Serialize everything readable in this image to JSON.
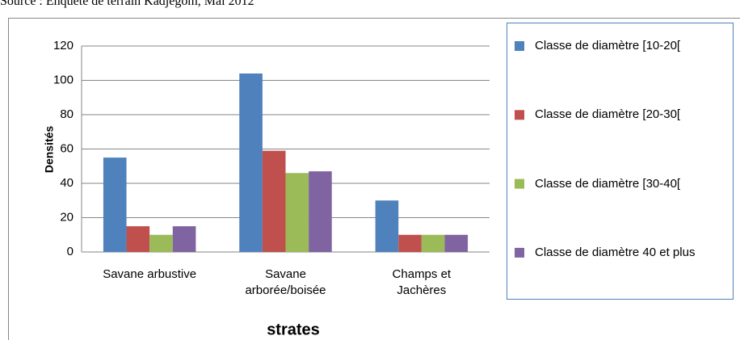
{
  "chart_data": {
    "type": "bar",
    "source": "Source : Enquête de terrain  Kadjegom, Mai 2012",
    "categories": [
      "Savane arbustive",
      "Savane arborée/boisée",
      "Champs et Jachères"
    ],
    "series": [
      {
        "name": "Classe de diamètre [10-20[",
        "color": "#4f81bd",
        "values": [
          55,
          104,
          30
        ]
      },
      {
        "name": "Classe de diamètre [20-30[",
        "color": "#c0504d",
        "values": [
          15,
          59,
          10
        ]
      },
      {
        "name": "Classe de diamètre [30-40[",
        "color": "#9bbb59",
        "values": [
          10,
          46,
          10
        ]
      },
      {
        "name": "Classe de diamètre 40 et plus",
        "color": "#8064a2",
        "values": [
          15,
          47,
          10
        ]
      }
    ],
    "ylabel": "Densités",
    "xlabel": "strates",
    "ylim": [
      0,
      120
    ],
    "yticks": [
      0,
      20,
      40,
      60,
      80,
      100,
      120
    ],
    "grid": true,
    "legend": "right"
  }
}
